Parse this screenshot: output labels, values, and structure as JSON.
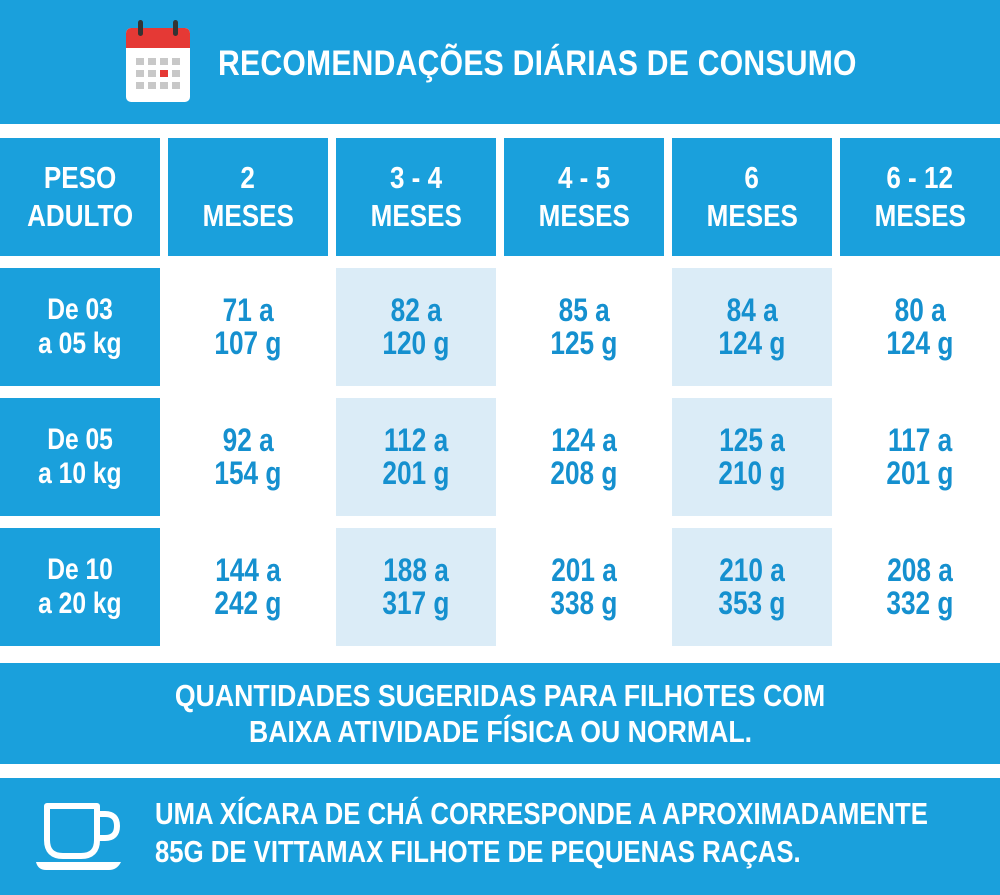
{
  "title": "RECOMENDAÇÕES DIÁRIAS DE CONSUMO",
  "icons": {
    "header": "calendar-icon",
    "footer": "teacup-icon"
  },
  "colors": {
    "primary_blue": "#1aa0dc",
    "light_blue_shade": "#dbecf7",
    "value_text": "#1590cf",
    "calendar_red": "#e53935"
  },
  "table": {
    "headers": [
      [
        "PESO",
        "ADULTO"
      ],
      [
        "2",
        "MESES"
      ],
      [
        "3 - 4",
        "MESES"
      ],
      [
        "4 - 5",
        "MESES"
      ],
      [
        "6",
        "MESES"
      ],
      [
        "6 - 12",
        "MESES"
      ]
    ],
    "rows": [
      {
        "label": [
          "De 03",
          "a 05 kg"
        ],
        "values": [
          [
            "71 a",
            "107 g"
          ],
          [
            "82 a",
            "120 g"
          ],
          [
            "85 a",
            "125 g"
          ],
          [
            "84 a",
            "124 g"
          ],
          [
            "80 a",
            "124 g"
          ]
        ]
      },
      {
        "label": [
          "De 05",
          "a 10 kg"
        ],
        "values": [
          [
            "92 a",
            "154 g"
          ],
          [
            "112 a",
            "201 g"
          ],
          [
            "124 a",
            "208 g"
          ],
          [
            "125 a",
            "210 g"
          ],
          [
            "117 a",
            "201 g"
          ]
        ]
      },
      {
        "label": [
          "De 10",
          "a 20 kg"
        ],
        "values": [
          [
            "144 a",
            "242 g"
          ],
          [
            "188 a",
            "317 g"
          ],
          [
            "201 a",
            "338 g"
          ],
          [
            "210 a",
            "353 g"
          ],
          [
            "208 a",
            "332 g"
          ]
        ]
      }
    ]
  },
  "note": [
    "QUANTIDADES SUGERIDAS PARA FILHOTES COM",
    "BAIXA ATIVIDADE FÍSICA OU NORMAL."
  ],
  "footer": [
    "UMA XÍCARA DE CHÁ CORRESPONDE A APROXIMADAMENTE",
    "85G DE VITTAMAX FILHOTE DE PEQUENAS RAÇAS."
  ]
}
